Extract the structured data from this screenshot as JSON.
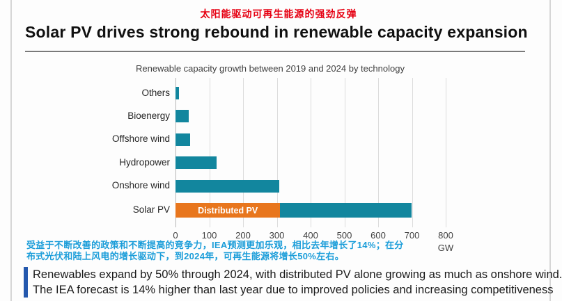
{
  "header": {
    "subtitle_cn": "太阳能驱动可再生能源的强劲反弹",
    "title": "Solar PV drives strong rebound in renewable capacity expansion"
  },
  "chart_data": {
    "type": "bar",
    "orientation": "horizontal",
    "title": "Renewable capacity growth between 2019 and 2024 by technology",
    "unit": "GW",
    "xlim": [
      0,
      800
    ],
    "xticks": [
      0,
      100,
      200,
      300,
      400,
      500,
      600,
      700,
      800
    ],
    "grid": true,
    "bars": [
      {
        "category": "Others",
        "value": 10
      },
      {
        "category": "Bioenergy",
        "value": 40
      },
      {
        "category": "Offshore wind",
        "value": 43
      },
      {
        "category": "Hydropower",
        "value": 121
      },
      {
        "category": "Onshore wind",
        "value": 308
      },
      {
        "category": "Solar PV",
        "value": 700,
        "segments": [
          {
            "label": "Distributed PV",
            "value": 310,
            "color_key": "orange"
          },
          {
            "label": "",
            "value": 390,
            "color_key": "teal"
          }
        ]
      }
    ],
    "colors": {
      "teal": "#12869E",
      "orange": "#E8761D"
    }
  },
  "notes": {
    "cn_line1": "受益于不断改善的政策和不断提高的竞争力，IEA预测更加乐观，相比去年增长了14%；在分",
    "cn_line2": "布式光伏和陆上风电的增长驱动下，到2024年，可再生能源将增长50%左右。",
    "en_line1": "Renewables expand by 50% through 2024, with distributed PV alone growing as much as onshore wind.",
    "en_line2": "The IEA forecast is 14% higher than last year due to improved policies and increasing competitiveness"
  },
  "colors": {
    "red_title": "#E60012",
    "cn_note": "#1B9DD9",
    "callout_accent": "#2458AD",
    "bar_teal": "#12869E",
    "bar_orange": "#E8761D"
  }
}
